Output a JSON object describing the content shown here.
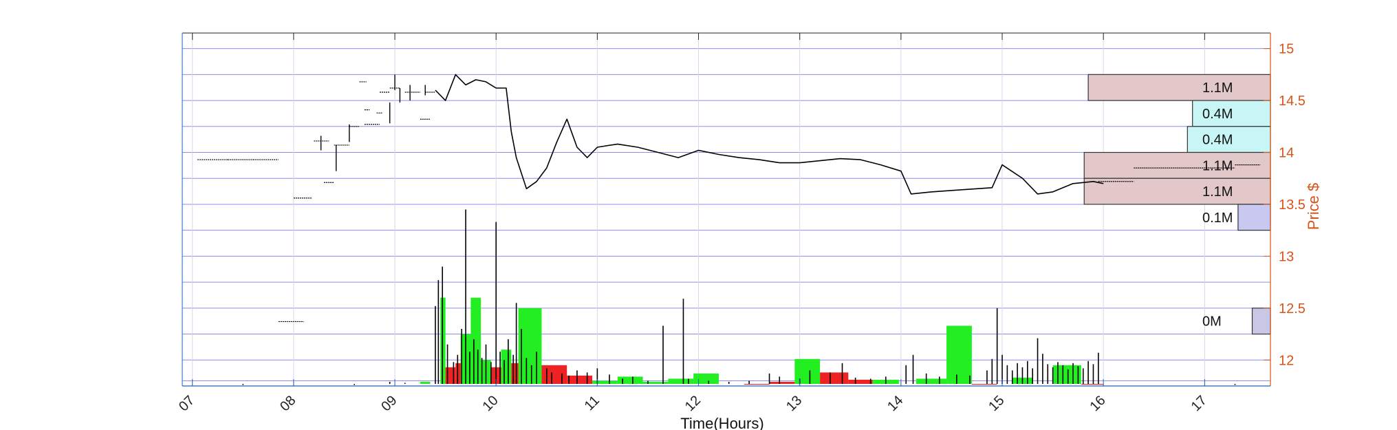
{
  "chart_data": {
    "type": "line",
    "xlabel": "Time(Hours)",
    "ylabel": "Price $",
    "xlim": [
      6.9,
      17.65
    ],
    "ylim": [
      11.75,
      15.15
    ],
    "x_ticks": [
      {
        "value": 7,
        "label": "07"
      },
      {
        "value": 8,
        "label": "08"
      },
      {
        "value": 9,
        "label": "09"
      },
      {
        "value": 10,
        "label": "10"
      },
      {
        "value": 11,
        "label": "11"
      },
      {
        "value": 12,
        "label": "12"
      },
      {
        "value": 13,
        "label": "13"
      },
      {
        "value": 14,
        "label": "14"
      },
      {
        "value": 15,
        "label": "15"
      },
      {
        "value": 16,
        "label": "16"
      },
      {
        "value": 17,
        "label": "17"
      }
    ],
    "y_ticks": [
      {
        "value": 12,
        "label": "12"
      },
      {
        "value": 12.5,
        "label": "12.5"
      },
      {
        "value": 13,
        "label": "13"
      },
      {
        "value": 13.5,
        "label": "13.5"
      },
      {
        "value": 14,
        "label": "14"
      },
      {
        "value": 14.5,
        "label": "14.5"
      },
      {
        "value": 15,
        "label": "15"
      }
    ],
    "y_gridlines": [
      11.8,
      12.0,
      12.25,
      12.5,
      12.75,
      13.0,
      13.25,
      13.5,
      13.75,
      14.0,
      14.25,
      14.5,
      14.75,
      15.0
    ],
    "grid": true,
    "colors": {
      "axis": "#1f5fbf",
      "grid": "#8c8cf0",
      "price": "#000000",
      "right_axis": "#d95319",
      "vol_up": "#22ee22",
      "vol_down": "#ee2222",
      "frame": "#222222"
    },
    "price_series": {
      "name": "",
      "x": [
        9.4,
        9.5,
        9.6,
        9.7,
        9.8,
        9.9,
        10.0,
        10.1,
        10.15,
        10.2,
        10.3,
        10.4,
        10.5,
        10.6,
        10.7,
        10.8,
        10.9,
        11.0,
        11.2,
        11.4,
        11.6,
        11.8,
        12.0,
        12.2,
        12.4,
        12.6,
        12.8,
        13.0,
        13.2,
        13.4,
        13.6,
        13.8,
        14.0,
        14.1,
        14.3,
        14.6,
        14.9,
        15.0,
        15.2,
        15.35,
        15.5,
        15.7,
        15.9,
        16.0
      ],
      "y": [
        14.6,
        14.5,
        14.75,
        14.65,
        14.7,
        14.68,
        14.62,
        14.62,
        14.2,
        13.95,
        13.65,
        13.72,
        13.85,
        14.1,
        14.32,
        14.05,
        13.95,
        14.05,
        14.08,
        14.05,
        14.0,
        13.95,
        14.02,
        13.98,
        13.95,
        13.93,
        13.9,
        13.9,
        13.92,
        13.94,
        13.93,
        13.88,
        13.82,
        13.6,
        13.62,
        13.64,
        13.66,
        13.88,
        13.75,
        13.6,
        13.62,
        13.7,
        13.72,
        13.7
      ]
    },
    "premarket_ticks": [
      {
        "x0": 7.05,
        "x1": 7.35,
        "y": 13.93
      },
      {
        "x0": 7.35,
        "x1": 7.6,
        "y": 13.93
      },
      {
        "x0": 7.6,
        "x1": 7.85,
        "y": 13.93
      },
      {
        "x0": 8.0,
        "x1": 8.18,
        "y": 13.56
      },
      {
        "x0": 7.85,
        "x1": 8.1,
        "y": 12.37
      },
      {
        "x0": 8.2,
        "x1": 8.35,
        "y": 14.11
      },
      {
        "x0": 8.4,
        "x1": 8.55,
        "y": 14.07
      },
      {
        "x0": 8.55,
        "x1": 8.65,
        "y": 14.25
      },
      {
        "x0": 8.7,
        "x1": 8.85,
        "y": 14.27
      },
      {
        "x0": 8.65,
        "x1": 8.72,
        "y": 14.68
      },
      {
        "x0": 8.7,
        "x1": 8.75,
        "y": 14.41
      },
      {
        "x0": 8.82,
        "x1": 8.88,
        "y": 14.38
      },
      {
        "x0": 8.85,
        "x1": 8.95,
        "y": 14.58
      },
      {
        "x0": 8.95,
        "x1": 9.05,
        "y": 14.62
      },
      {
        "x0": 9.1,
        "x1": 9.25,
        "y": 14.58
      },
      {
        "x0": 9.25,
        "x1": 9.35,
        "y": 14.32
      },
      {
        "x0": 9.3,
        "x1": 9.4,
        "y": 14.58
      },
      {
        "x0": 8.3,
        "x1": 8.4,
        "y": 13.71
      },
      {
        "x0": 15.95,
        "x1": 16.3,
        "y": 13.72
      },
      {
        "x0": 16.3,
        "x1": 17.3,
        "y": 13.85
      },
      {
        "x0": 17.3,
        "x1": 17.55,
        "y": 13.88
      }
    ],
    "premarket_spikes": [
      {
        "x": 8.27,
        "lo": 14.02,
        "hi": 14.16
      },
      {
        "x": 8.42,
        "lo": 13.82,
        "hi": 14.07
      },
      {
        "x": 8.55,
        "lo": 14.1,
        "hi": 14.27
      },
      {
        "x": 8.95,
        "lo": 14.28,
        "hi": 14.48
      },
      {
        "x": 9.0,
        "lo": 14.6,
        "hi": 14.75
      },
      {
        "x": 9.05,
        "lo": 14.48,
        "hi": 14.62
      },
      {
        "x": 9.15,
        "lo": 14.5,
        "hi": 14.65
      },
      {
        "x": 9.3,
        "lo": 14.55,
        "hi": 14.65
      }
    ],
    "volume_profile": [
      {
        "label": "1.1M",
        "price_low": 14.5,
        "price_high": 14.75,
        "left": 15.85,
        "color": "#e2c8c8"
      },
      {
        "label": "0.4M",
        "price_low": 14.25,
        "price_high": 14.5,
        "left": 16.88,
        "color": "#c8f5f5"
      },
      {
        "label": "0.4M",
        "price_low": 14.0,
        "price_high": 14.25,
        "left": 16.83,
        "color": "#c8f5f5"
      },
      {
        "label": "1.1M",
        "price_low": 13.75,
        "price_high": 14.0,
        "left": 15.81,
        "color": "#e2c8c8"
      },
      {
        "label": "1.1M",
        "price_low": 13.5,
        "price_high": 13.75,
        "left": 15.81,
        "color": "#e2c8c8"
      },
      {
        "label": "0.1M",
        "price_low": 13.25,
        "price_high": 13.5,
        "left": 17.33,
        "color": "#c8c8f0"
      },
      {
        "label": "0M",
        "price_low": 12.25,
        "price_high": 12.5,
        "left": 17.47,
        "color": "#c8c8e6"
      }
    ],
    "volume_bars": [
      {
        "x0": 9.25,
        "x1": 9.35,
        "top": 11.79,
        "dir": "up"
      },
      {
        "x0": 9.45,
        "x1": 9.5,
        "top": 12.6,
        "dir": "up"
      },
      {
        "x0": 9.5,
        "x1": 9.6,
        "top": 11.93,
        "dir": "down"
      },
      {
        "x0": 9.6,
        "x1": 9.7,
        "top": 11.97,
        "dir": "down"
      },
      {
        "x0": 9.65,
        "x1": 9.75,
        "top": 12.25,
        "dir": "up"
      },
      {
        "x0": 9.75,
        "x1": 9.85,
        "top": 12.6,
        "dir": "up"
      },
      {
        "x0": 9.85,
        "x1": 9.95,
        "top": 12.0,
        "dir": "up"
      },
      {
        "x0": 9.95,
        "x1": 10.05,
        "top": 11.93,
        "dir": "down"
      },
      {
        "x0": 10.05,
        "x1": 10.15,
        "top": 12.1,
        "dir": "up"
      },
      {
        "x0": 10.15,
        "x1": 10.25,
        "top": 11.97,
        "dir": "down"
      },
      {
        "x0": 10.22,
        "x1": 10.45,
        "top": 12.5,
        "dir": "up"
      },
      {
        "x0": 10.45,
        "x1": 10.7,
        "top": 11.95,
        "dir": "down"
      },
      {
        "x0": 10.7,
        "x1": 10.95,
        "top": 11.85,
        "dir": "down"
      },
      {
        "x0": 10.95,
        "x1": 11.2,
        "top": 11.8,
        "dir": "up"
      },
      {
        "x0": 11.2,
        "x1": 11.45,
        "top": 11.84,
        "dir": "up"
      },
      {
        "x0": 11.45,
        "x1": 11.7,
        "top": 11.79,
        "dir": "up"
      },
      {
        "x0": 11.7,
        "x1": 11.95,
        "top": 11.82,
        "dir": "up"
      },
      {
        "x0": 11.95,
        "x1": 12.2,
        "top": 11.87,
        "dir": "up"
      },
      {
        "x0": 12.45,
        "x1": 12.7,
        "top": 11.77,
        "dir": "down"
      },
      {
        "x0": 12.7,
        "x1": 12.95,
        "top": 11.79,
        "dir": "down"
      },
      {
        "x0": 12.95,
        "x1": 13.2,
        "top": 12.01,
        "dir": "up"
      },
      {
        "x0": 13.2,
        "x1": 13.48,
        "top": 11.88,
        "dir": "down"
      },
      {
        "x0": 13.48,
        "x1": 13.72,
        "top": 11.81,
        "dir": "down"
      },
      {
        "x0": 13.72,
        "x1": 13.98,
        "top": 11.81,
        "dir": "up"
      },
      {
        "x0": 14.15,
        "x1": 14.45,
        "top": 11.82,
        "dir": "up"
      },
      {
        "x0": 14.45,
        "x1": 14.7,
        "top": 12.33,
        "dir": "up"
      },
      {
        "x0": 14.7,
        "x1": 14.95,
        "top": 11.77,
        "dir": "down"
      },
      {
        "x0": 15.1,
        "x1": 15.3,
        "top": 11.83,
        "dir": "up"
      },
      {
        "x0": 15.5,
        "x1": 15.78,
        "top": 11.95,
        "dir": "up"
      },
      {
        "x0": 15.78,
        "x1": 16.0,
        "top": 11.77,
        "dir": "down"
      }
    ],
    "volume_spikes": [
      {
        "x": 9.4,
        "top": 12.52
      },
      {
        "x": 9.43,
        "top": 12.77
      },
      {
        "x": 9.47,
        "top": 12.9
      },
      {
        "x": 9.52,
        "top": 12.15
      },
      {
        "x": 9.58,
        "top": 11.98
      },
      {
        "x": 9.62,
        "top": 12.05
      },
      {
        "x": 9.66,
        "top": 12.3
      },
      {
        "x": 9.7,
        "top": 13.45
      },
      {
        "x": 9.74,
        "top": 12.08
      },
      {
        "x": 9.78,
        "top": 12.2
      },
      {
        "x": 9.82,
        "top": 12.1
      },
      {
        "x": 9.86,
        "top": 12.02
      },
      {
        "x": 9.9,
        "top": 12.15
      },
      {
        "x": 9.95,
        "top": 11.98
      },
      {
        "x": 10.0,
        "top": 13.33
      },
      {
        "x": 10.04,
        "top": 12.08
      },
      {
        "x": 10.08,
        "top": 12.0
      },
      {
        "x": 10.12,
        "top": 12.2
      },
      {
        "x": 10.17,
        "top": 12.05
      },
      {
        "x": 10.2,
        "top": 12.55
      },
      {
        "x": 10.25,
        "top": 12.3
      },
      {
        "x": 10.3,
        "top": 12.02
      },
      {
        "x": 10.35,
        "top": 11.95
      },
      {
        "x": 10.4,
        "top": 12.08
      },
      {
        "x": 10.5,
        "top": 11.92
      },
      {
        "x": 10.55,
        "top": 11.88
      },
      {
        "x": 10.65,
        "top": 11.87
      },
      {
        "x": 10.72,
        "top": 11.85
      },
      {
        "x": 10.8,
        "top": 11.9
      },
      {
        "x": 10.9,
        "top": 11.88
      },
      {
        "x": 11.0,
        "top": 11.92
      },
      {
        "x": 11.12,
        "top": 11.86
      },
      {
        "x": 11.25,
        "top": 11.82
      },
      {
        "x": 11.35,
        "top": 11.84
      },
      {
        "x": 11.5,
        "top": 11.8
      },
      {
        "x": 11.65,
        "top": 12.33
      },
      {
        "x": 11.85,
        "top": 12.59
      },
      {
        "x": 11.9,
        "top": 11.82
      },
      {
        "x": 12.1,
        "top": 11.8
      },
      {
        "x": 12.3,
        "top": 11.79
      },
      {
        "x": 12.5,
        "top": 11.8
      },
      {
        "x": 12.7,
        "top": 11.87
      },
      {
        "x": 12.8,
        "top": 11.84
      },
      {
        "x": 13.0,
        "top": 11.82
      },
      {
        "x": 13.1,
        "top": 11.9
      },
      {
        "x": 13.3,
        "top": 11.88
      },
      {
        "x": 13.42,
        "top": 11.97
      },
      {
        "x": 13.55,
        "top": 11.83
      },
      {
        "x": 13.7,
        "top": 11.82
      },
      {
        "x": 13.85,
        "top": 11.84
      },
      {
        "x": 14.05,
        "top": 11.95
      },
      {
        "x": 14.12,
        "top": 12.05
      },
      {
        "x": 14.25,
        "top": 11.87
      },
      {
        "x": 14.38,
        "top": 11.84
      },
      {
        "x": 14.55,
        "top": 11.86
      },
      {
        "x": 14.68,
        "top": 11.85
      },
      {
        "x": 14.85,
        "top": 11.9
      },
      {
        "x": 14.9,
        "top": 12.01
      },
      {
        "x": 14.95,
        "top": 12.5
      },
      {
        "x": 15.0,
        "top": 12.05
      },
      {
        "x": 15.05,
        "top": 11.95
      },
      {
        "x": 15.1,
        "top": 11.9
      },
      {
        "x": 15.15,
        "top": 11.97
      },
      {
        "x": 15.2,
        "top": 11.93
      },
      {
        "x": 15.25,
        "top": 11.99
      },
      {
        "x": 15.3,
        "top": 11.92
      },
      {
        "x": 15.35,
        "top": 12.21
      },
      {
        "x": 15.4,
        "top": 12.06
      },
      {
        "x": 15.45,
        "top": 11.96
      },
      {
        "x": 15.5,
        "top": 11.93
      },
      {
        "x": 15.55,
        "top": 11.98
      },
      {
        "x": 15.6,
        "top": 11.95
      },
      {
        "x": 15.65,
        "top": 11.91
      },
      {
        "x": 15.7,
        "top": 11.97
      },
      {
        "x": 15.75,
        "top": 11.94
      },
      {
        "x": 15.8,
        "top": 11.92
      },
      {
        "x": 15.85,
        "top": 11.99
      },
      {
        "x": 15.9,
        "top": 11.96
      },
      {
        "x": 15.95,
        "top": 12.07
      },
      {
        "x": 8.2,
        "top": 11.77
      },
      {
        "x": 8.45,
        "top": 11.77
      },
      {
        "x": 8.6,
        "top": 11.76
      },
      {
        "x": 8.95,
        "top": 11.79
      },
      {
        "x": 9.1,
        "top": 11.78
      },
      {
        "x": 7.5,
        "top": 11.76
      },
      {
        "x": 17.3,
        "top": 11.76
      }
    ]
  }
}
